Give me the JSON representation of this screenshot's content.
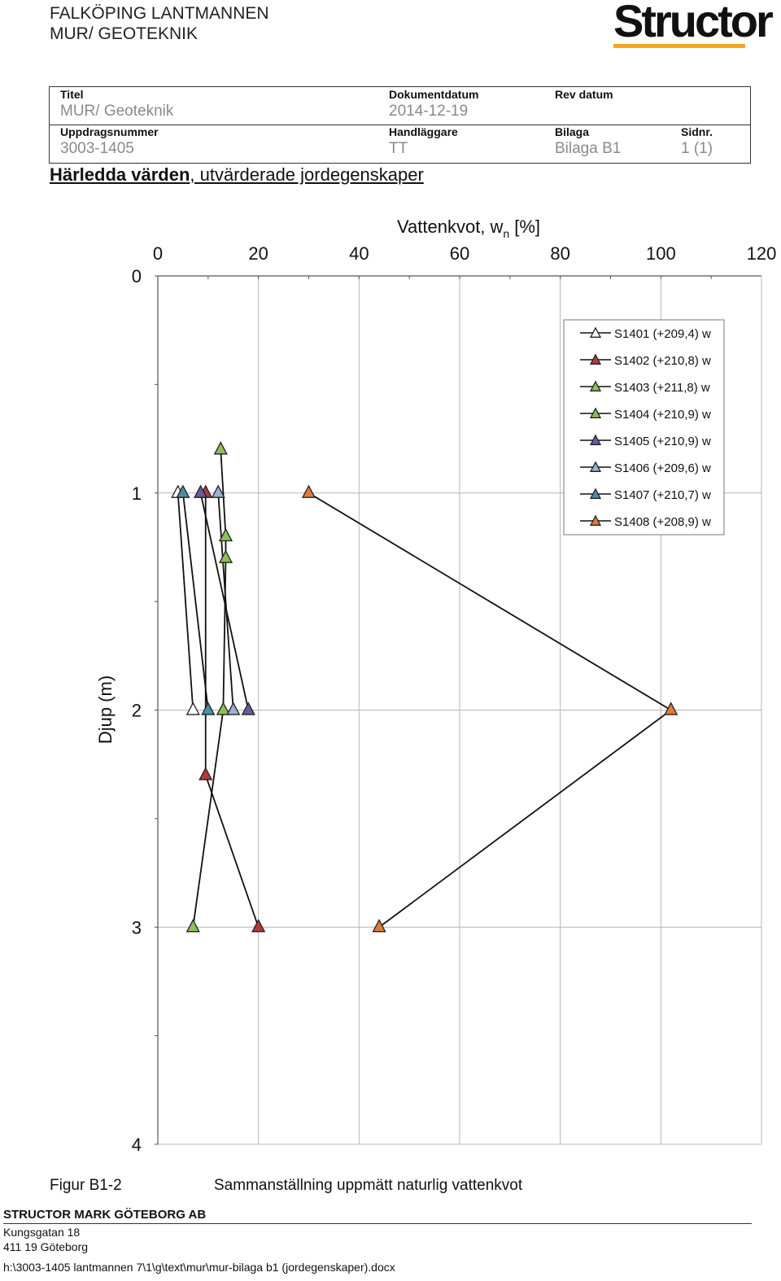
{
  "header": {
    "line1": "FALKÖPING LANTMANNEN",
    "line2": "MUR/ GEOTEKNIK",
    "logo_text": "Structor"
  },
  "meta": {
    "titel_label": "Titel",
    "titel_value": "MUR/ Geoteknik",
    "dokumentdatum_label": "Dokumentdatum",
    "dokumentdatum_value": "2014-12-19",
    "revdatum_label": "Rev datum",
    "revdatum_value": "",
    "uppdragsnummer_label": "Uppdragsnummer",
    "uppdragsnummer_value": "3003-1405",
    "handlaggare_label": "Handläggare",
    "handlaggare_value": "TT",
    "bilaga_label": "Bilaga",
    "bilaga_value": "Bilaga B1",
    "sidnr_label": "Sidnr.",
    "sidnr_value": "1 (1)"
  },
  "heading": {
    "bold": "Härledda värden",
    "rest": ", utvärderade jordegenskaper"
  },
  "chart_data": {
    "type": "scatter",
    "title": "Vattenkvot, w",
    "title_subscript": "n",
    "title_unit": "[%]",
    "ylabel": "Djup (m)",
    "xlim": [
      0,
      120
    ],
    "ylim": [
      0,
      4
    ],
    "y_inverted": true,
    "x_axis_position": "top",
    "x_ticks": [
      "0",
      "20",
      "40",
      "60",
      "80",
      "100",
      "120"
    ],
    "y_ticks": [
      "0",
      "1",
      "2",
      "3",
      "4"
    ],
    "grid": true,
    "legend_position": "top-right",
    "series": [
      {
        "name": "S1401 (+209,4) w",
        "color": "#ffffff",
        "points": [
          [
            4,
            1.0
          ],
          [
            7,
            2.0
          ]
        ]
      },
      {
        "name": "S1402 (+210,8) w",
        "color": "#b03a3a",
        "points": [
          [
            9.5,
            1.0
          ],
          [
            9.5,
            2.3
          ],
          [
            20,
            3.0
          ]
        ]
      },
      {
        "name": "S1403 (+211,8) w",
        "color": "#8dbf5a",
        "points": [
          [
            12.5,
            0.8
          ],
          [
            13.5,
            1.2
          ],
          [
            13.5,
            1.3
          ],
          [
            13,
            2.0
          ],
          [
            7,
            3.0
          ]
        ]
      },
      {
        "name": "S1404 (+210,9) w",
        "color": "#8dbf5a",
        "points": []
      },
      {
        "name": "S1405 (+210,9) w",
        "color": "#6a5a9a",
        "points": [
          [
            8.5,
            1.0
          ],
          [
            18,
            2.0
          ]
        ]
      },
      {
        "name": "S1406 (+209,6) w",
        "color": "#9bb0d4",
        "points": [
          [
            12,
            1.0
          ],
          [
            15,
            2.0
          ]
        ]
      },
      {
        "name": "S1407 (+210,7) w",
        "color": "#4a8fa8",
        "points": [
          [
            5,
            1.0
          ],
          [
            10,
            2.0
          ]
        ]
      },
      {
        "name": "S1408 (+208,9) w",
        "color": "#e07b39",
        "points": [
          [
            30,
            1.0
          ],
          [
            102,
            2.0
          ],
          [
            44,
            3.0
          ]
        ]
      }
    ]
  },
  "figure": {
    "label": "Figur B1-2",
    "caption": "Sammanställning uppmätt naturlig vattenkvot"
  },
  "footer": {
    "company": "STRUCTOR MARK GÖTEBORG AB",
    "address1": "Kungsgatan 18",
    "address2": "411 19 Göteborg",
    "path": "h:\\3003-1405 lantmannen 7\\1\\g\\text\\mur\\mur-bilaga b1 (jordegenskaper).docx"
  }
}
